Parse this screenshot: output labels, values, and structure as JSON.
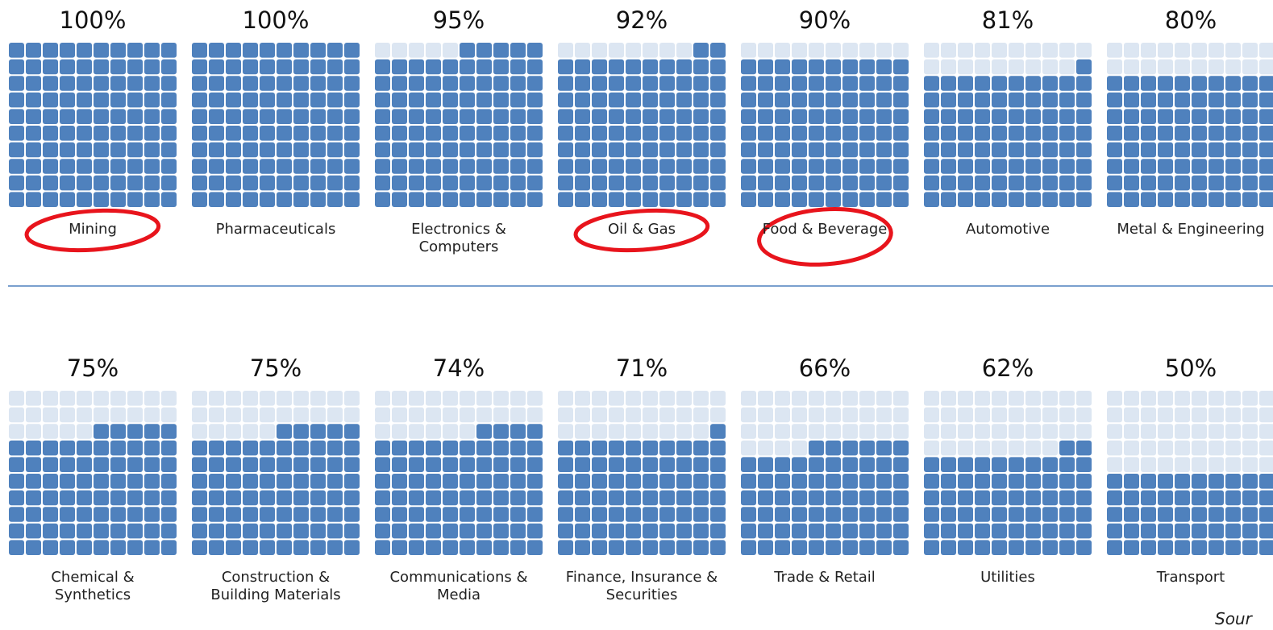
{
  "chart_data": {
    "type": "waffle",
    "categories": [
      "Mining",
      "Pharmaceuticals",
      "Electronics & Computers",
      "Oil & Gas",
      "Food & Beverage",
      "Automotive",
      "Metal & Engineering",
      "Chemical & Synthetics",
      "Construction & Building Materials",
      "Communications & Media",
      "Finance, Insurance & Securities",
      "Trade & Retail",
      "Utilities",
      "Transport"
    ],
    "values": [
      100,
      100,
      95,
      92,
      90,
      81,
      80,
      75,
      75,
      74,
      71,
      66,
      62,
      50
    ],
    "value_labels": [
      "100%",
      "100%",
      "95%",
      "92%",
      "90%",
      "81%",
      "80%",
      "75%",
      "75%",
      "74%",
      "71%",
      "66%",
      "62%",
      "50%"
    ],
    "color": "#4f81bd",
    "empty_color": "#dce6f2",
    "highlight_color": "#e8141c",
    "highlight": [
      0,
      3,
      4
    ],
    "source": "Sour"
  }
}
